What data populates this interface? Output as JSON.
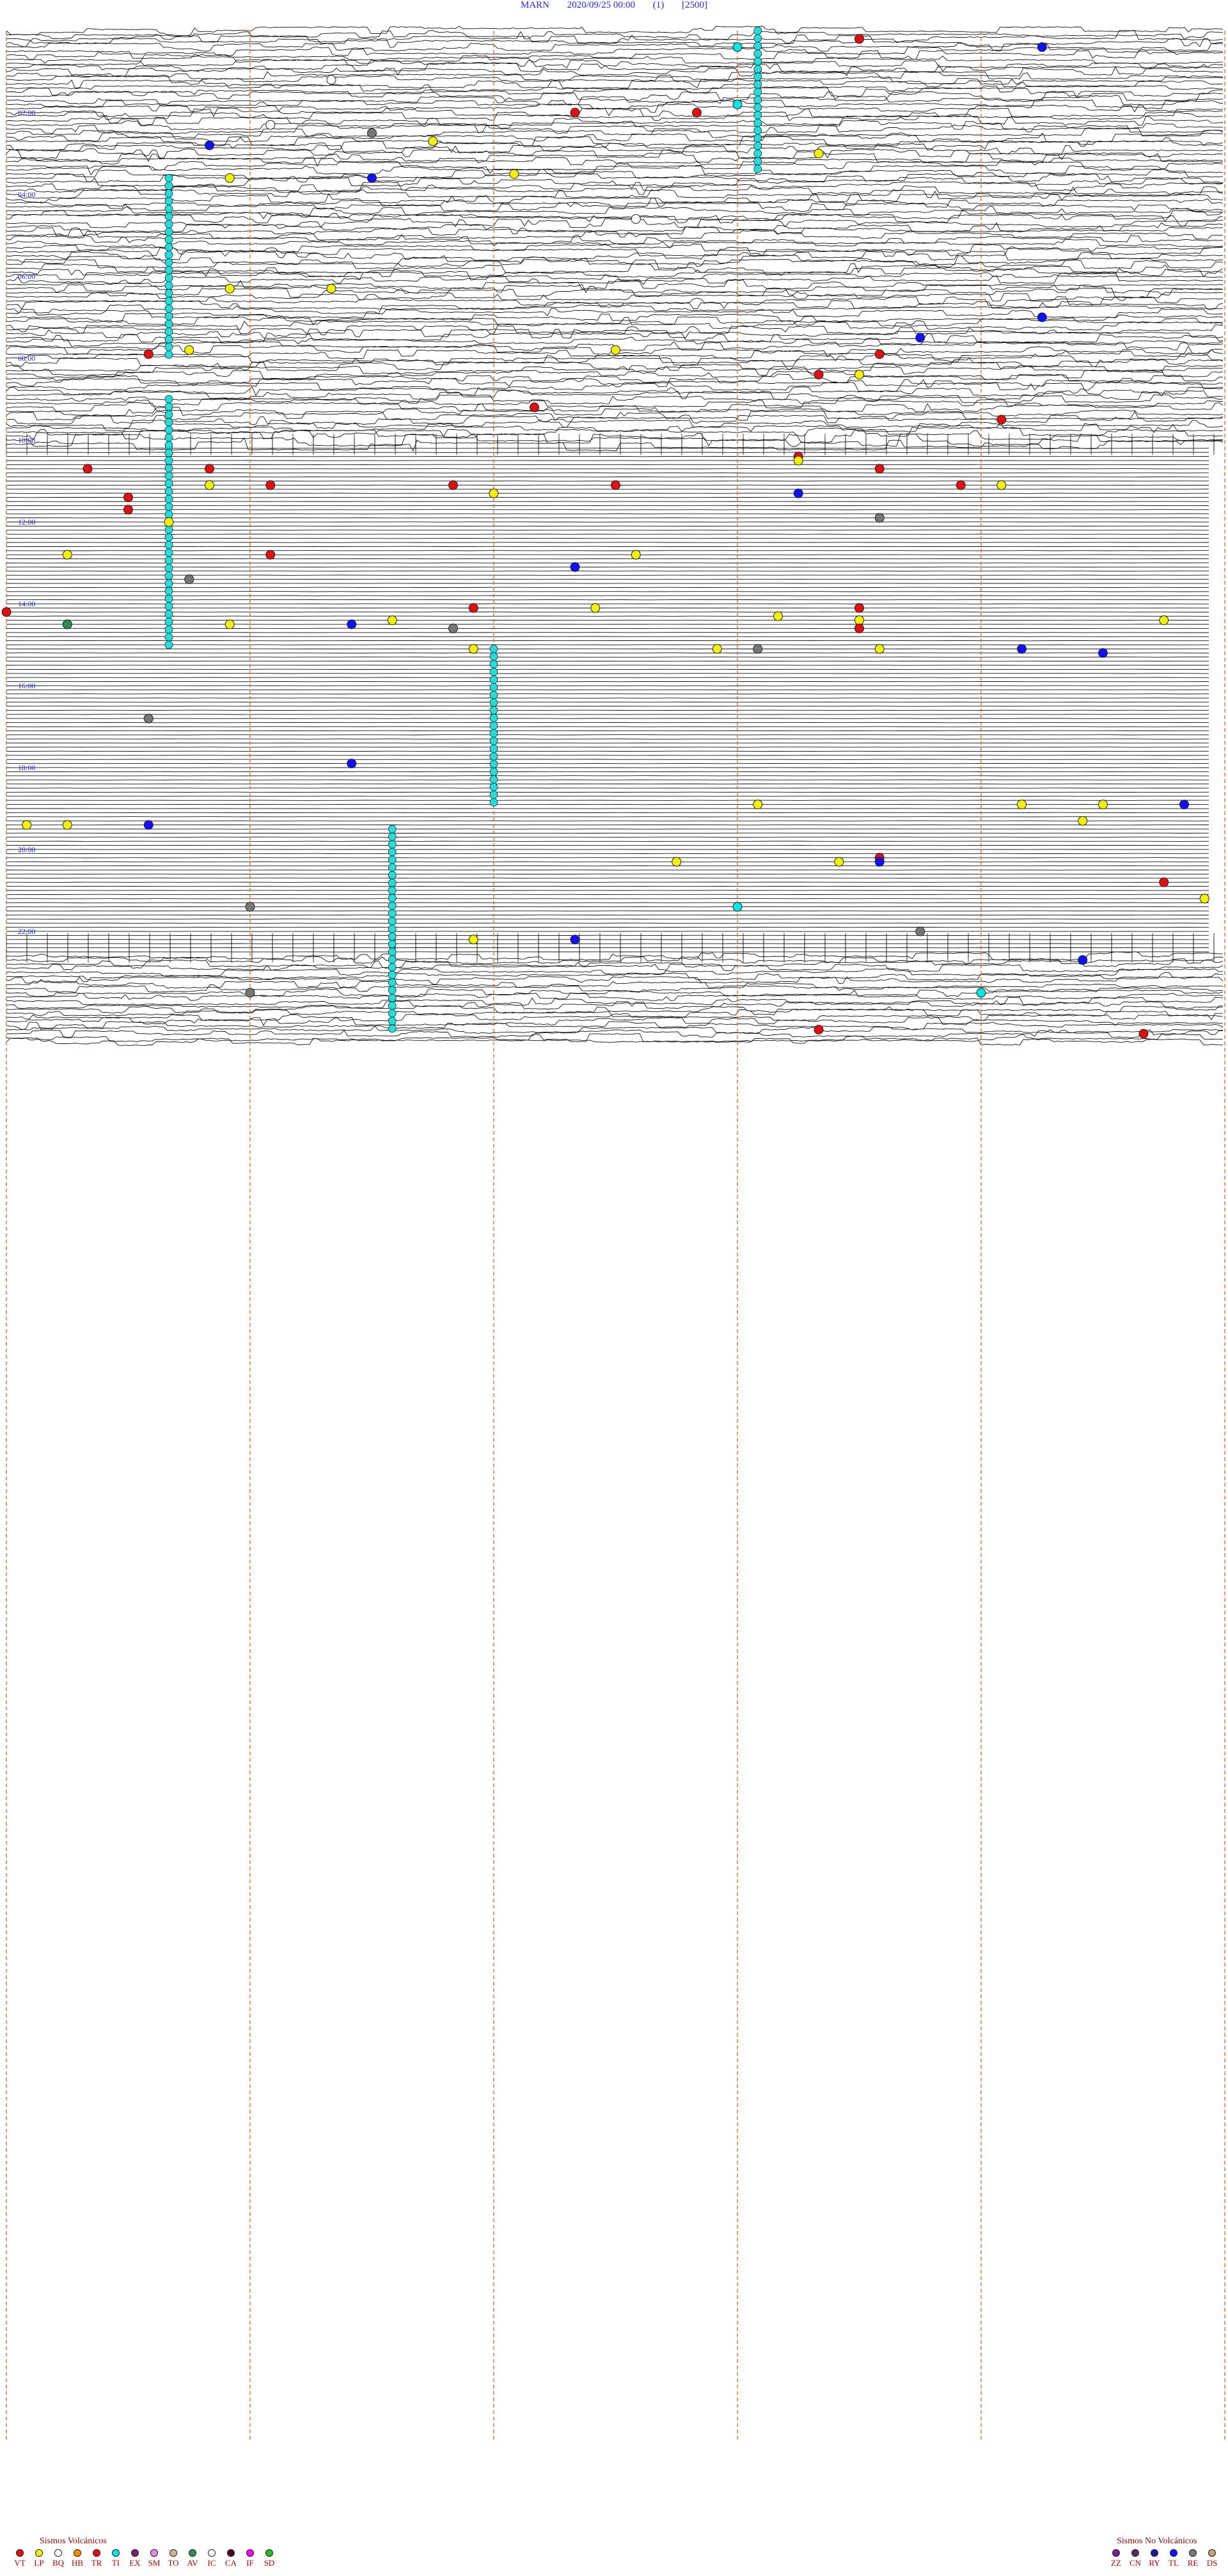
{
  "header": {
    "station": "MARN",
    "datetime": "2020/09/25 00:00",
    "channel": "(1)",
    "scale": "[2500]"
  },
  "time_labels": [
    "02:00",
    "04:00",
    "06:00",
    "08:00",
    "10:00",
    "12:00",
    "14:00",
    "16:00",
    "18:00",
    "20:00",
    "22:00"
  ],
  "legend_volcanic": {
    "title": "Sismos Volcánicos",
    "items": [
      {
        "code": "VT",
        "color": "#e01010"
      },
      {
        "code": "LP",
        "color": "#f2f200"
      },
      {
        "code": "BQ",
        "color": "#ffffff"
      },
      {
        "code": "HB",
        "color": "#ff8c00"
      },
      {
        "code": "TR",
        "color": "#e01010"
      },
      {
        "code": "TI",
        "color": "#00e5e5"
      },
      {
        "code": "EX",
        "color": "#7a1f7a"
      },
      {
        "code": "SM",
        "color": "#ee82ee"
      },
      {
        "code": "TO",
        "color": "#d2b48c"
      },
      {
        "code": "AV",
        "color": "#2e8b57"
      },
      {
        "code": "IC",
        "color": "#ffffff"
      },
      {
        "code": "CA",
        "color": "#4b0030"
      },
      {
        "code": "IF",
        "color": "#ff00ff"
      },
      {
        "code": "SD",
        "color": "#22bb22"
      }
    ]
  },
  "legend_nonvolcanic": {
    "title": "Sismos No Volcánicos",
    "items": [
      {
        "code": "ZZ",
        "color": "#7a1fa0"
      },
      {
        "code": "CN",
        "color": "#5a2a5a"
      },
      {
        "code": "RY",
        "color": "#1a1aa0"
      },
      {
        "code": "TL",
        "color": "#1010ff"
      },
      {
        "code": "RE",
        "color": "#777777"
      },
      {
        "code": "DS",
        "color": "#c8a070"
      }
    ]
  },
  "colors": {
    "trace": "#111111",
    "hour_separator": "#e07030",
    "time_label": "#1f1fff",
    "tremor_band": "#22dddd"
  },
  "chart_data": {
    "type": "scatter",
    "title": "MARN 2020/09/25 00:00 (1) [2500]",
    "x_unit": "minutes past hour",
    "xlim": [
      0,
      60
    ],
    "ylim_hours": [
      0,
      24
    ],
    "tremor_bands": [
      {
        "x": 37,
        "y_start": 0.0,
        "y_end": 3.4
      },
      {
        "x": 8,
        "y_start": 3.6,
        "y_end": 8.0
      },
      {
        "x": 8,
        "y_start": 9.0,
        "y_end": 15.1
      },
      {
        "x": 24,
        "y_start": 15.1,
        "y_end": 18.9
      },
      {
        "x": 19,
        "y_start": 19.5,
        "y_end": 24.5
      }
    ],
    "events": [
      {
        "t": "VT",
        "h": 0.2,
        "m": 42
      },
      {
        "t": "TI",
        "h": 0.4,
        "m": 36
      },
      {
        "t": "TL",
        "h": 0.4,
        "m": 51
      },
      {
        "t": "IC",
        "h": 1.2,
        "m": 16
      },
      {
        "t": "TI",
        "h": 1.8,
        "m": 36
      },
      {
        "t": "VT",
        "h": 2.0,
        "m": 28
      },
      {
        "t": "VT",
        "h": 2.0,
        "m": 34
      },
      {
        "t": "IC",
        "h": 2.3,
        "m": 13
      },
      {
        "t": "RE",
        "h": 2.5,
        "m": 18
      },
      {
        "t": "LP",
        "h": 2.7,
        "m": 21
      },
      {
        "t": "TL",
        "h": 2.8,
        "m": 10
      },
      {
        "t": "LP",
        "h": 3.0,
        "m": 40
      },
      {
        "t": "TL",
        "h": 3.6,
        "m": 18
      },
      {
        "t": "LP",
        "h": 3.6,
        "m": 11
      },
      {
        "t": "LP",
        "h": 3.5,
        "m": 25
      },
      {
        "t": "IC",
        "h": 4.6,
        "m": 31
      },
      {
        "t": "LP",
        "h": 6.3,
        "m": 11
      },
      {
        "t": "LP",
        "h": 6.3,
        "m": 16
      },
      {
        "t": "TL",
        "h": 7.0,
        "m": 51
      },
      {
        "t": "TL",
        "h": 7.5,
        "m": 45
      },
      {
        "t": "VT",
        "h": 7.9,
        "m": 7
      },
      {
        "t": "LP",
        "h": 7.8,
        "m": 9
      },
      {
        "t": "LP",
        "h": 7.8,
        "m": 30
      },
      {
        "t": "VT",
        "h": 7.9,
        "m": 43
      },
      {
        "t": "VT",
        "h": 8.4,
        "m": 40
      },
      {
        "t": "LP",
        "h": 8.4,
        "m": 42
      },
      {
        "t": "VT",
        "h": 9.2,
        "m": 26
      },
      {
        "t": "VT",
        "h": 9.5,
        "m": 49
      },
      {
        "t": "VT",
        "h": 10.4,
        "m": 39
      },
      {
        "t": "LP",
        "h": 10.5,
        "m": 39
      },
      {
        "t": "VT",
        "h": 10.7,
        "m": 4
      },
      {
        "t": "VT",
        "h": 10.7,
        "m": 10
      },
      {
        "t": "VT",
        "h": 10.7,
        "m": 43
      },
      {
        "t": "LP",
        "h": 11.1,
        "m": 10
      },
      {
        "t": "LP",
        "h": 11.1,
        "m": 49
      },
      {
        "t": "VT",
        "h": 11.1,
        "m": 13
      },
      {
        "t": "VT",
        "h": 11.1,
        "m": 22
      },
      {
        "t": "VT",
        "h": 11.1,
        "m": 30
      },
      {
        "t": "VT",
        "h": 11.1,
        "m": 47
      },
      {
        "t": "TL",
        "h": 11.3,
        "m": 39
      },
      {
        "t": "LP",
        "h": 11.3,
        "m": 24
      },
      {
        "t": "VT",
        "h": 11.4,
        "m": 6
      },
      {
        "t": "VT",
        "h": 11.7,
        "m": 6
      },
      {
        "t": "LP",
        "h": 12.0,
        "m": 8
      },
      {
        "t": "RE",
        "h": 11.9,
        "m": 43
      },
      {
        "t": "LP",
        "h": 12.8,
        "m": 3
      },
      {
        "t": "VT",
        "h": 12.8,
        "m": 13
      },
      {
        "t": "LP",
        "h": 12.8,
        "m": 31
      },
      {
        "t": "TL",
        "h": 13.1,
        "m": 28
      },
      {
        "t": "RE",
        "h": 13.4,
        "m": 9
      },
      {
        "t": "VT",
        "h": 14.2,
        "m": 0
      },
      {
        "t": "LP",
        "h": 14.5,
        "m": 3
      },
      {
        "t": "AV",
        "h": 14.5,
        "m": 3
      },
      {
        "t": "LP",
        "h": 14.4,
        "m": 19
      },
      {
        "t": "LP",
        "h": 14.5,
        "m": 11
      },
      {
        "t": "TL",
        "h": 14.5,
        "m": 17
      },
      {
        "t": "RE",
        "h": 14.6,
        "m": 22
      },
      {
        "t": "VT",
        "h": 14.1,
        "m": 23
      },
      {
        "t": "LP",
        "h": 14.1,
        "m": 29
      },
      {
        "t": "LP",
        "h": 14.3,
        "m": 38
      },
      {
        "t": "VT",
        "h": 14.1,
        "m": 42
      },
      {
        "t": "LP",
        "h": 14.4,
        "m": 42
      },
      {
        "t": "VT",
        "h": 14.6,
        "m": 42
      },
      {
        "t": "LP",
        "h": 14.4,
        "m": 57
      },
      {
        "t": "LP",
        "h": 15.1,
        "m": 23
      },
      {
        "t": "LP",
        "h": 15.1,
        "m": 35
      },
      {
        "t": "RE",
        "h": 15.1,
        "m": 37
      },
      {
        "t": "LP",
        "h": 15.1,
        "m": 43
      },
      {
        "t": "TL",
        "h": 15.1,
        "m": 50
      },
      {
        "t": "TL",
        "h": 15.2,
        "m": 54
      },
      {
        "t": "RE",
        "h": 16.8,
        "m": 7
      },
      {
        "t": "TL",
        "h": 17.9,
        "m": 17
      },
      {
        "t": "LP",
        "h": 18.9,
        "m": 37
      },
      {
        "t": "LP",
        "h": 18.9,
        "m": 50
      },
      {
        "t": "LP",
        "h": 18.9,
        "m": 54
      },
      {
        "t": "TL",
        "h": 18.9,
        "m": 58
      },
      {
        "t": "LP",
        "h": 19.4,
        "m": 1
      },
      {
        "t": "LP",
        "h": 19.4,
        "m": 3
      },
      {
        "t": "TL",
        "h": 19.4,
        "m": 7
      },
      {
        "t": "LP",
        "h": 19.3,
        "m": 53
      },
      {
        "t": "VT",
        "h": 20.2,
        "m": 43
      },
      {
        "t": "TL",
        "h": 20.3,
        "m": 43
      },
      {
        "t": "LP",
        "h": 20.3,
        "m": 33
      },
      {
        "t": "LP",
        "h": 20.3,
        "m": 41
      },
      {
        "t": "VT",
        "h": 20.8,
        "m": 57
      },
      {
        "t": "RE",
        "h": 21.4,
        "m": 12
      },
      {
        "t": "TI",
        "h": 21.4,
        "m": 36
      },
      {
        "t": "LP",
        "h": 21.2,
        "m": 59
      },
      {
        "t": "RE",
        "h": 22.0,
        "m": 45
      },
      {
        "t": "LP",
        "h": 22.2,
        "m": 23
      },
      {
        "t": "TL",
        "h": 22.2,
        "m": 28
      },
      {
        "t": "TL",
        "h": 22.7,
        "m": 53
      },
      {
        "t": "RE",
        "h": 23.5,
        "m": 12
      },
      {
        "t": "TI",
        "h": 23.5,
        "m": 48
      },
      {
        "t": "VT",
        "h": 24.4,
        "m": 40
      },
      {
        "t": "VT",
        "h": 24.5,
        "m": 56
      }
    ]
  }
}
